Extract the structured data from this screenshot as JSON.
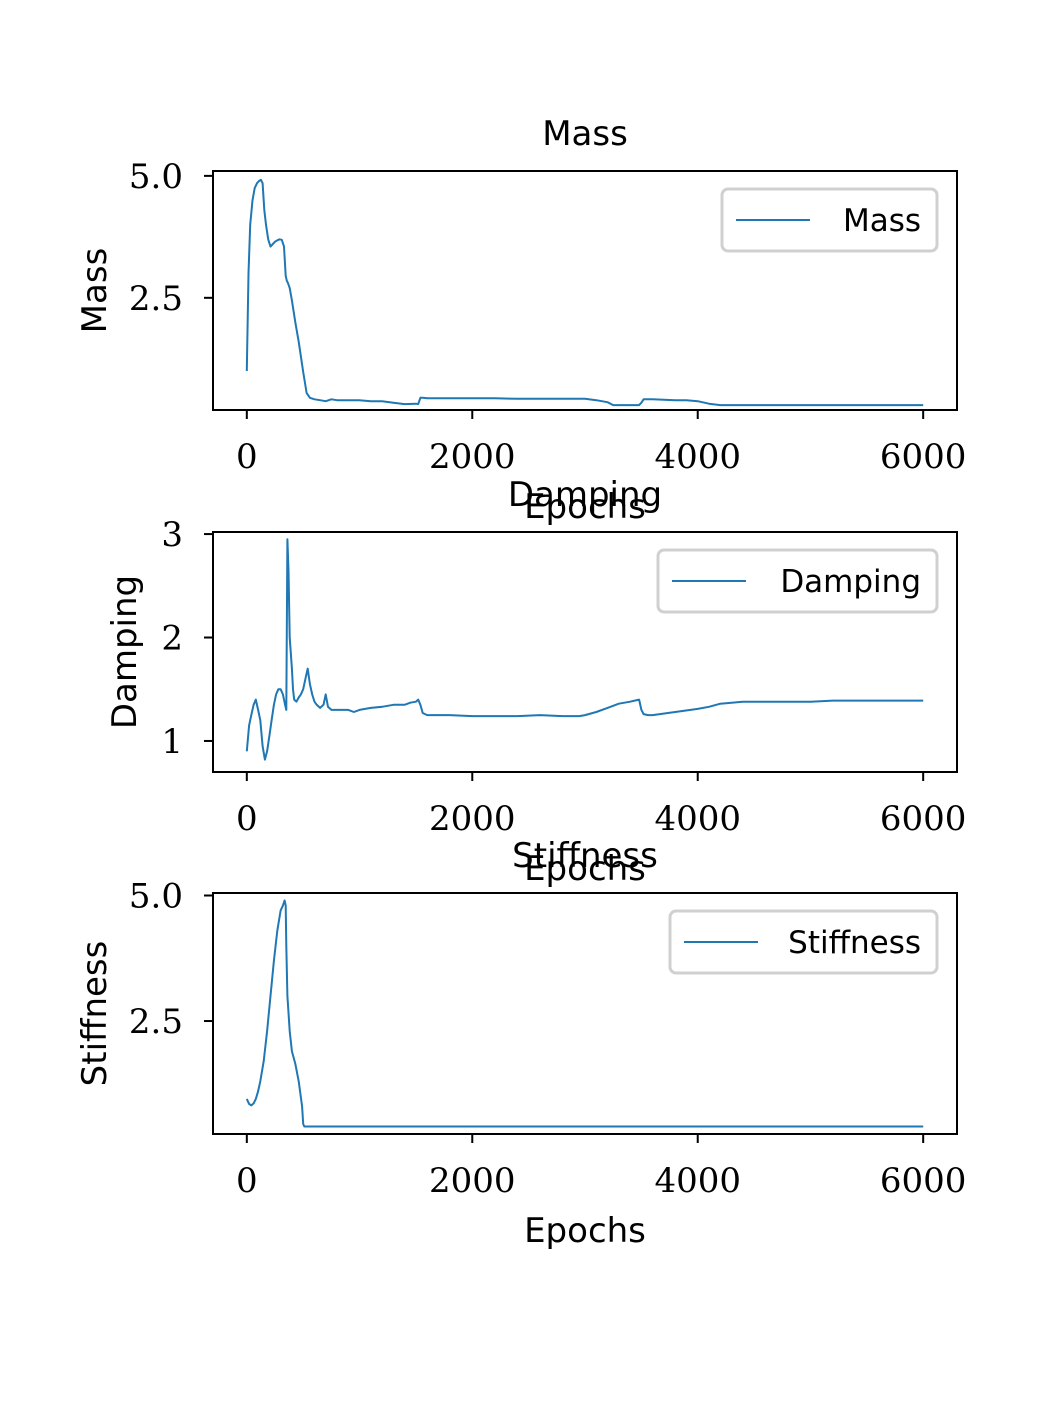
{
  "colors": {
    "line": "#1f77b4",
    "axis": "#000000",
    "legend_border": "#d0d0d0",
    "background": "#ffffff"
  },
  "chart_data": [
    {
      "type": "line",
      "title": "Mass",
      "xlabel": "Epochs",
      "ylabel": "Mass",
      "xlim": [
        -300,
        6300
      ],
      "ylim": [
        0.2,
        5.1
      ],
      "xticks": [
        0,
        2000,
        4000,
        6000
      ],
      "xtick_labels": [
        "0",
        "2000",
        "4000",
        "6000"
      ],
      "yticks": [
        2.5,
        5.0
      ],
      "ytick_labels": [
        "2.5",
        "5.0"
      ],
      "legend_position": "top-right",
      "series": [
        {
          "name": "Mass",
          "x": [
            0,
            15,
            30,
            50,
            70,
            90,
            110,
            125,
            140,
            155,
            170,
            190,
            210,
            230,
            250,
            270,
            290,
            310,
            330,
            345,
            355,
            365,
            380,
            400,
            430,
            460,
            500,
            530,
            560,
            600,
            650,
            700,
            750,
            800,
            900,
            1000,
            1100,
            1200,
            1300,
            1400,
            1500,
            1520,
            1540,
            1560,
            1600,
            1800,
            2000,
            2200,
            2400,
            2600,
            2800,
            3000,
            3100,
            3200,
            3250,
            3400,
            3480,
            3500,
            3520,
            3600,
            3800,
            3900,
            4000,
            4100,
            4200,
            4300,
            4500,
            5000,
            5500,
            6000
          ],
          "y": [
            1.0,
            3.0,
            4.0,
            4.5,
            4.75,
            4.85,
            4.9,
            4.92,
            4.85,
            4.3,
            4.0,
            3.7,
            3.55,
            3.6,
            3.65,
            3.68,
            3.7,
            3.69,
            3.55,
            2.95,
            2.85,
            2.8,
            2.7,
            2.45,
            2.0,
            1.6,
            0.98,
            0.55,
            0.45,
            0.42,
            0.4,
            0.38,
            0.42,
            0.4,
            0.4,
            0.4,
            0.38,
            0.38,
            0.35,
            0.32,
            0.33,
            0.32,
            0.45,
            0.45,
            0.44,
            0.44,
            0.44,
            0.44,
            0.43,
            0.43,
            0.43,
            0.43,
            0.4,
            0.36,
            0.3,
            0.3,
            0.3,
            0.35,
            0.42,
            0.42,
            0.4,
            0.4,
            0.38,
            0.33,
            0.3,
            0.3,
            0.3,
            0.3,
            0.3,
            0.3
          ]
        }
      ]
    },
    {
      "type": "line",
      "title": "Damping",
      "xlabel": "Epochs",
      "ylabel": "Damping",
      "xlim": [
        -300,
        6300
      ],
      "ylim": [
        0.7,
        3.02
      ],
      "xticks": [
        0,
        2000,
        4000,
        6000
      ],
      "xtick_labels": [
        "0",
        "2000",
        "4000",
        "6000"
      ],
      "yticks": [
        1,
        2,
        3
      ],
      "ytick_labels": [
        "1",
        "2",
        "3"
      ],
      "legend_position": "top-right",
      "series": [
        {
          "name": "Damping",
          "x": [
            0,
            20,
            40,
            60,
            80,
            100,
            120,
            140,
            160,
            180,
            200,
            220,
            240,
            260,
            280,
            300,
            320,
            340,
            350,
            360,
            370,
            380,
            390,
            400,
            410,
            420,
            440,
            460,
            480,
            500,
            520,
            540,
            560,
            580,
            600,
            620,
            650,
            680,
            700,
            720,
            750,
            800,
            850,
            900,
            950,
            1000,
            1100,
            1200,
            1300,
            1400,
            1450,
            1500,
            1520,
            1540,
            1560,
            1600,
            1700,
            1800,
            2000,
            2200,
            2400,
            2600,
            2800,
            2950,
            3000,
            3100,
            3200,
            3300,
            3400,
            3480,
            3500,
            3520,
            3560,
            3600,
            3800,
            4000,
            4100,
            4200,
            4400,
            4600,
            4800,
            5000,
            5200,
            5400,
            5600,
            5800,
            6000
          ],
          "y": [
            0.9,
            1.15,
            1.25,
            1.35,
            1.4,
            1.3,
            1.2,
            0.95,
            0.82,
            0.9,
            1.05,
            1.2,
            1.35,
            1.45,
            1.5,
            1.5,
            1.45,
            1.35,
            1.3,
            2.95,
            2.65,
            2.0,
            1.85,
            1.7,
            1.5,
            1.4,
            1.38,
            1.42,
            1.45,
            1.5,
            1.6,
            1.7,
            1.55,
            1.45,
            1.38,
            1.35,
            1.32,
            1.35,
            1.45,
            1.33,
            1.3,
            1.3,
            1.3,
            1.3,
            1.28,
            1.3,
            1.32,
            1.33,
            1.35,
            1.35,
            1.37,
            1.38,
            1.4,
            1.35,
            1.27,
            1.25,
            1.25,
            1.25,
            1.24,
            1.24,
            1.24,
            1.25,
            1.24,
            1.24,
            1.25,
            1.28,
            1.32,
            1.36,
            1.38,
            1.4,
            1.3,
            1.26,
            1.25,
            1.25,
            1.28,
            1.31,
            1.33,
            1.36,
            1.38,
            1.38,
            1.38,
            1.38,
            1.39,
            1.39,
            1.39,
            1.39,
            1.39
          ]
        }
      ]
    },
    {
      "type": "line",
      "title": "Stiffness",
      "xlabel": "Epochs",
      "ylabel": "Stiffness",
      "xlim": [
        -300,
        6300
      ],
      "ylim": [
        0.25,
        5.05
      ],
      "xticks": [
        0,
        2000,
        4000,
        6000
      ],
      "xtick_labels": [
        "0",
        "2000",
        "4000",
        "6000"
      ],
      "yticks": [
        2.5,
        5.0
      ],
      "ytick_labels": [
        "2.5",
        "5.0"
      ],
      "legend_position": "top-right",
      "series": [
        {
          "name": "Stiffness",
          "x": [
            0,
            20,
            40,
            60,
            80,
            100,
            120,
            150,
            180,
            210,
            240,
            270,
            300,
            320,
            335,
            345,
            350,
            360,
            380,
            400,
            430,
            460,
            490,
            500,
            510,
            600,
            800,
            1000,
            1200,
            1400,
            1600,
            1800,
            2000,
            3000,
            4000,
            5000,
            6000
          ],
          "y": [
            0.95,
            0.85,
            0.82,
            0.86,
            0.95,
            1.1,
            1.3,
            1.7,
            2.3,
            3.0,
            3.7,
            4.3,
            4.7,
            4.8,
            4.9,
            4.8,
            4.0,
            3.0,
            2.3,
            1.9,
            1.65,
            1.3,
            0.8,
            0.45,
            0.4,
            0.4,
            0.4,
            0.4,
            0.4,
            0.4,
            0.4,
            0.4,
            0.4,
            0.4,
            0.4,
            0.4,
            0.4
          ]
        }
      ]
    }
  ]
}
